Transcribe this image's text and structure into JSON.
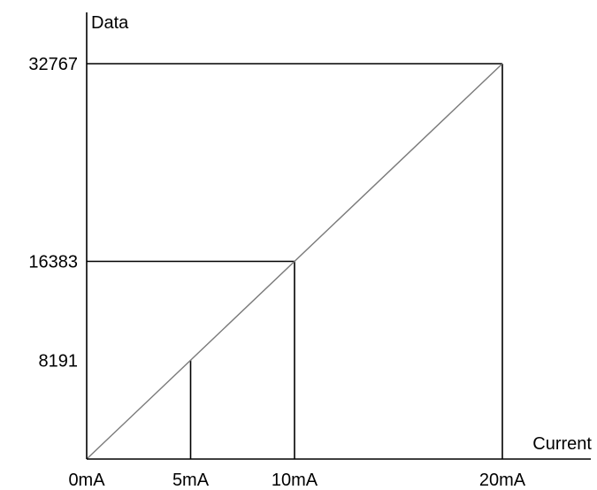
{
  "chart_data": {
    "type": "line",
    "xlabel": "Current",
    "ylabel": "Data",
    "x_ticks": [
      {
        "value": 0,
        "label": "0mA"
      },
      {
        "value": 5,
        "label": "5mA"
      },
      {
        "value": 10,
        "label": "10mA"
      },
      {
        "value": 20,
        "label": "20mA"
      }
    ],
    "y_ticks": [
      {
        "value": 8191,
        "label": "8191"
      },
      {
        "value": 16383,
        "label": "16383"
      },
      {
        "value": 32767,
        "label": "32767"
      }
    ],
    "series": [
      {
        "points": [
          [
            0,
            0
          ],
          [
            20,
            32767
          ]
        ]
      }
    ],
    "guides": [
      {
        "x": 5,
        "y": 8191,
        "horizontal": false
      },
      {
        "x": 10,
        "y": 16383,
        "horizontal": true
      },
      {
        "x": 20,
        "y": 32767,
        "horizontal": true
      }
    ],
    "xlim": [
      0,
      20
    ],
    "ylim": [
      0,
      32767
    ],
    "grid": false,
    "colors": {
      "axis": "#000000",
      "series": "#7a7a7a",
      "text": "#000000"
    }
  }
}
